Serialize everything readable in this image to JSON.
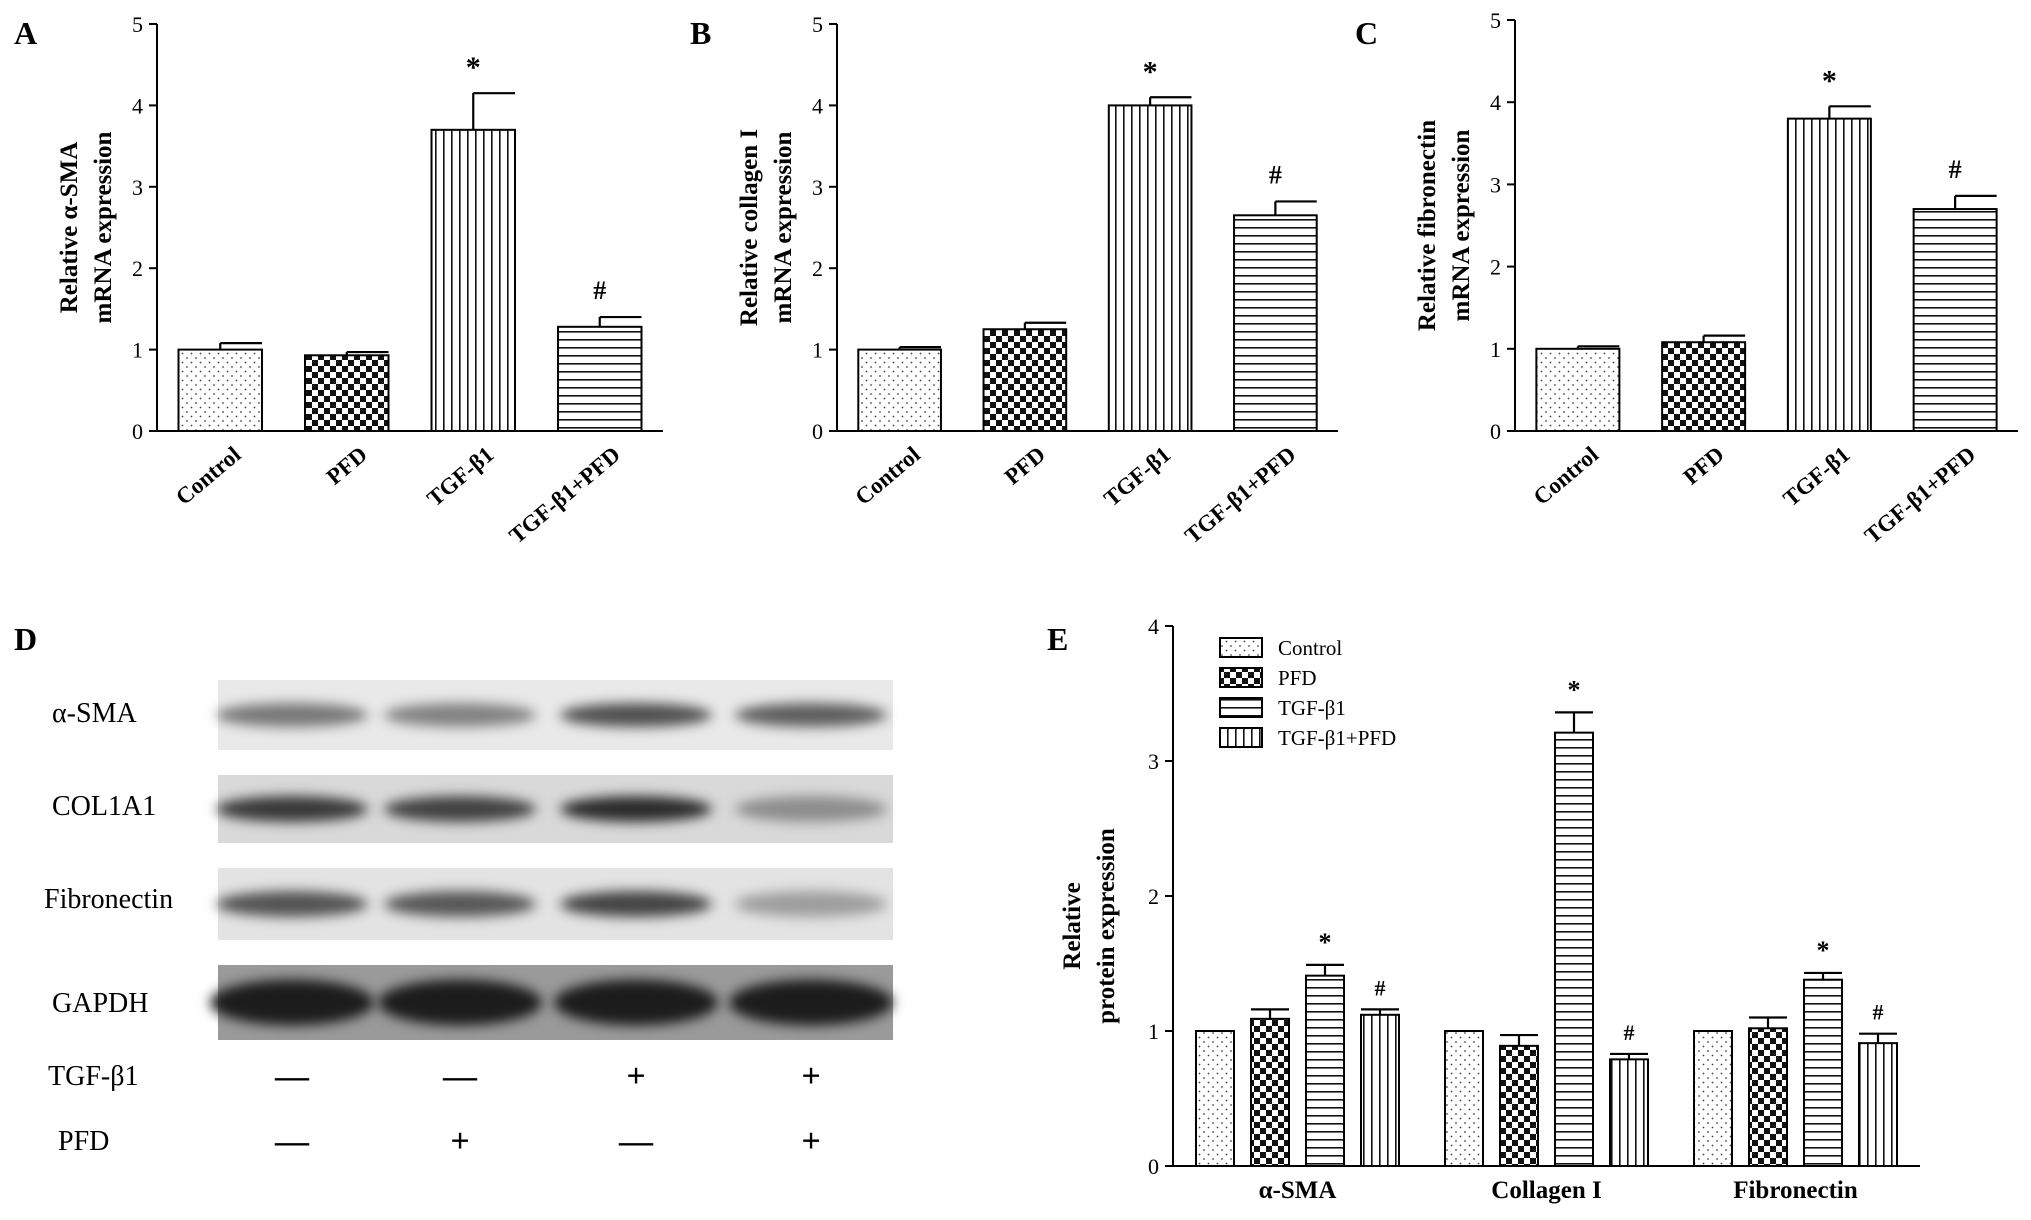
{
  "figure": {
    "panels": [
      "A",
      "B",
      "C",
      "D",
      "E"
    ]
  },
  "blot": {
    "panel_label": "D",
    "rows": [
      "α-SMA",
      "COL1A1",
      "Fibronectin",
      "GAPDH"
    ],
    "treatments": [
      {
        "label": "TGF-β1",
        "marks": [
          "—",
          "—",
          "+",
          "+"
        ]
      },
      {
        "label": "PFD",
        "marks": [
          "—",
          "+",
          "—",
          "+"
        ]
      }
    ]
  },
  "chart_data": [
    {
      "panel": "A",
      "type": "bar",
      "categories": [
        "Control",
        "PFD",
        "TGF-β1",
        "TGF-β1+PFD"
      ],
      "values": [
        1.0,
        0.93,
        3.7,
        1.28
      ],
      "errors": [
        0.08,
        0.04,
        0.45,
        0.12
      ],
      "annotations": [
        "",
        "",
        "*",
        "#"
      ],
      "patterns": [
        "dots",
        "checker",
        "vlines",
        "hlines"
      ],
      "ylabel": [
        "Relative α-SMA",
        "mRNA expression"
      ],
      "ylim": [
        0,
        5
      ],
      "yticks": [
        "0",
        "1",
        "2",
        "3",
        "4",
        "5"
      ]
    },
    {
      "panel": "B",
      "type": "bar",
      "categories": [
        "Control",
        "PFD",
        "TGF-β1",
        "TGF-β1+PFD"
      ],
      "values": [
        1.0,
        1.25,
        4.0,
        2.65
      ],
      "errors": [
        0.03,
        0.08,
        0.1,
        0.17
      ],
      "annotations": [
        "",
        "",
        "*",
        "#"
      ],
      "patterns": [
        "dots",
        "checker",
        "vlines",
        "hlines"
      ],
      "ylabel": [
        "Relative collagen I",
        "mRNA expression"
      ],
      "ylim": [
        0,
        5
      ],
      "yticks": [
        "0",
        "1",
        "2",
        "3",
        "4",
        "5"
      ]
    },
    {
      "panel": "C",
      "type": "bar",
      "categories": [
        "Control",
        "PFD",
        "TGF-β1",
        "TGF-β1+PFD"
      ],
      "values": [
        1.0,
        1.08,
        3.8,
        2.7
      ],
      "errors": [
        0.03,
        0.08,
        0.15,
        0.16
      ],
      "annotations": [
        "",
        "",
        "*",
        "#"
      ],
      "patterns": [
        "dots",
        "checker",
        "vlines",
        "hlines"
      ],
      "ylabel": [
        "Relative fibronectin",
        "mRNA expression"
      ],
      "ylim": [
        0,
        5
      ],
      "yticks": [
        "0",
        "1",
        "2",
        "3",
        "4",
        "5"
      ]
    },
    {
      "panel": "E",
      "type": "bar",
      "categories": [
        "α-SMA",
        "Collagen I",
        "Fibronectin"
      ],
      "series": [
        {
          "name": "Control",
          "values": [
            1.0,
            1.0,
            1.0
          ],
          "errors": [
            0.0,
            0.0,
            0.0
          ],
          "annotations": [
            "",
            "",
            ""
          ],
          "pattern": "dots"
        },
        {
          "name": "PFD",
          "values": [
            1.09,
            0.89,
            1.02
          ],
          "errors": [
            0.07,
            0.08,
            0.08
          ],
          "annotations": [
            "",
            "",
            ""
          ],
          "pattern": "checker"
        },
        {
          "name": "TGF-β1",
          "values": [
            1.41,
            3.21,
            1.38
          ],
          "errors": [
            0.08,
            0.15,
            0.05
          ],
          "annotations": [
            "*",
            "*",
            "*"
          ],
          "pattern": "hlines"
        },
        {
          "name": "TGF-β1+PFD",
          "values": [
            1.12,
            0.79,
            0.91
          ],
          "errors": [
            0.04,
            0.04,
            0.07
          ],
          "annotations": [
            "#",
            "#",
            "#"
          ],
          "pattern": "vlines"
        }
      ],
      "ylabel": [
        "Relative",
        "protein expression"
      ],
      "ylim": [
        0,
        4
      ],
      "yticks": [
        "0",
        "1",
        "2",
        "3",
        "4"
      ],
      "legend_position": "top-left"
    }
  ]
}
